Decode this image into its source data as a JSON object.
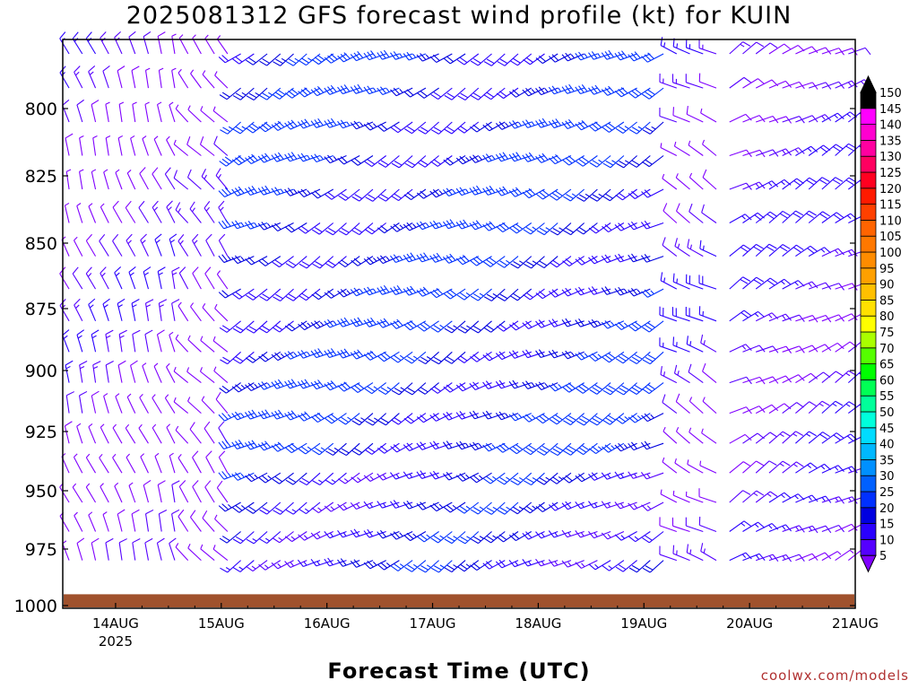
{
  "title": "2025081312 GFS forecast wind profile (kt) for KUIN",
  "xlabel": "Forecast Time (UTC)",
  "credit": "coolwx.com/models",
  "chart_data": {
    "type": "wind-barb-profile",
    "title": "2025081312 GFS forecast wind profile (kt) for KUIN",
    "xlabel": "Forecast Time (UTC)",
    "ylabel": "",
    "y_axis": {
      "reversed": true,
      "ticks": [
        800,
        825,
        850,
        875,
        900,
        925,
        950,
        975,
        1000
      ],
      "range": [
        775,
        1000
      ],
      "unit": "hPa"
    },
    "x_axis": {
      "range_days": [
        13.5,
        21.0
      ],
      "ticks": [
        {
          "day": 14,
          "label": "14AUG",
          "sublabel": "2025"
        },
        {
          "day": 15,
          "label": "15AUG"
        },
        {
          "day": 16,
          "label": "16AUG"
        },
        {
          "day": 17,
          "label": "17AUG"
        },
        {
          "day": 18,
          "label": "18AUG"
        },
        {
          "day": 19,
          "label": "19AUG"
        },
        {
          "day": 20,
          "label": "20AUG"
        },
        {
          "day": 21,
          "label": "21AUG"
        }
      ]
    },
    "colorbar": {
      "unit": "kt",
      "levels": [
        5,
        10,
        15,
        20,
        25,
        30,
        35,
        40,
        45,
        50,
        55,
        60,
        65,
        70,
        75,
        80,
        85,
        90,
        95,
        100,
        105,
        110,
        115,
        120,
        125,
        130,
        135,
        140,
        145,
        150
      ],
      "colors": [
        "#8000ff",
        "#5500ff",
        "#2a00ff",
        "#0000e0",
        "#0030ff",
        "#0060ff",
        "#0090ff",
        "#00b8ff",
        "#00dcff",
        "#00ffdc",
        "#00ff9a",
        "#00ff55",
        "#00ff00",
        "#55ff00",
        "#aaff00",
        "#ffff00",
        "#ffe000",
        "#ffc000",
        "#ffa000",
        "#ff8c00",
        "#ff7800",
        "#ff6400",
        "#ff4000",
        "#ff1a00",
        "#ff0020",
        "#ff0060",
        "#ff00a0",
        "#ff00d0",
        "#ff00ff",
        "#000000"
      ]
    },
    "wind_regimes": [
      {
        "from_day": 13.5,
        "to_day": 14.6,
        "direction_deg": 340,
        "speed_kt": 10
      },
      {
        "from_day": 14.6,
        "to_day": 15.1,
        "direction_deg": 320,
        "speed_kt": 8
      },
      {
        "from_day": 15.1,
        "to_day": 19.2,
        "direction_deg": 240,
        "speed_kt": 24
      },
      {
        "from_day": 19.2,
        "to_day": 19.8,
        "direction_deg": 300,
        "speed_kt": 12
      },
      {
        "from_day": 19.8,
        "to_day": 21.0,
        "direction_deg": 60,
        "speed_kt": 14
      }
    ],
    "terrain_color": "#a0522d",
    "terrain_pressure_hpa": 995
  }
}
